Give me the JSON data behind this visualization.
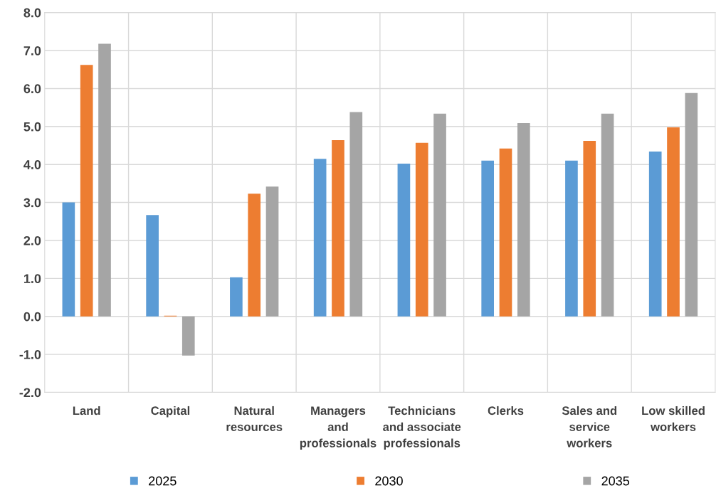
{
  "chart_data": {
    "type": "bar",
    "categories": [
      "Land",
      "Capital",
      "Natural\nresources",
      "Managers\nand\nprofessionals",
      "Technicians\nand associate\nprofessionals",
      "Clerks",
      "Sales and\nservice\nworkers",
      "Low skilled\nworkers"
    ],
    "series": [
      {
        "name": "2025",
        "color": "#5b9bd5",
        "values": [
          3.0,
          2.67,
          1.03,
          4.15,
          4.02,
          4.1,
          4.1,
          4.34
        ]
      },
      {
        "name": "2030",
        "color": "#ed7d31",
        "values": [
          6.62,
          0.02,
          3.23,
          4.64,
          4.57,
          4.42,
          4.62,
          4.98
        ]
      },
      {
        "name": "2035",
        "color": "#a5a5a5",
        "values": [
          7.18,
          -1.03,
          3.42,
          5.38,
          5.34,
          5.09,
          5.34,
          5.88
        ]
      }
    ],
    "ylim": [
      -2,
      8
    ],
    "yticks": [
      {
        "value": -2,
        "label": "-2.0"
      },
      {
        "value": -1,
        "label": "-1.0"
      },
      {
        "value": 0,
        "label": "0.0"
      },
      {
        "value": 1,
        "label": "1.0"
      },
      {
        "value": 2,
        "label": "2.0"
      },
      {
        "value": 3,
        "label": "3.0"
      },
      {
        "value": 4,
        "label": "4.0"
      },
      {
        "value": 5,
        "label": "5.0"
      },
      {
        "value": 6,
        "label": "6.0"
      },
      {
        "value": 7,
        "label": "7.0"
      },
      {
        "value": 8,
        "label": "8.0"
      }
    ],
    "grid": true,
    "legend": "bottom"
  }
}
